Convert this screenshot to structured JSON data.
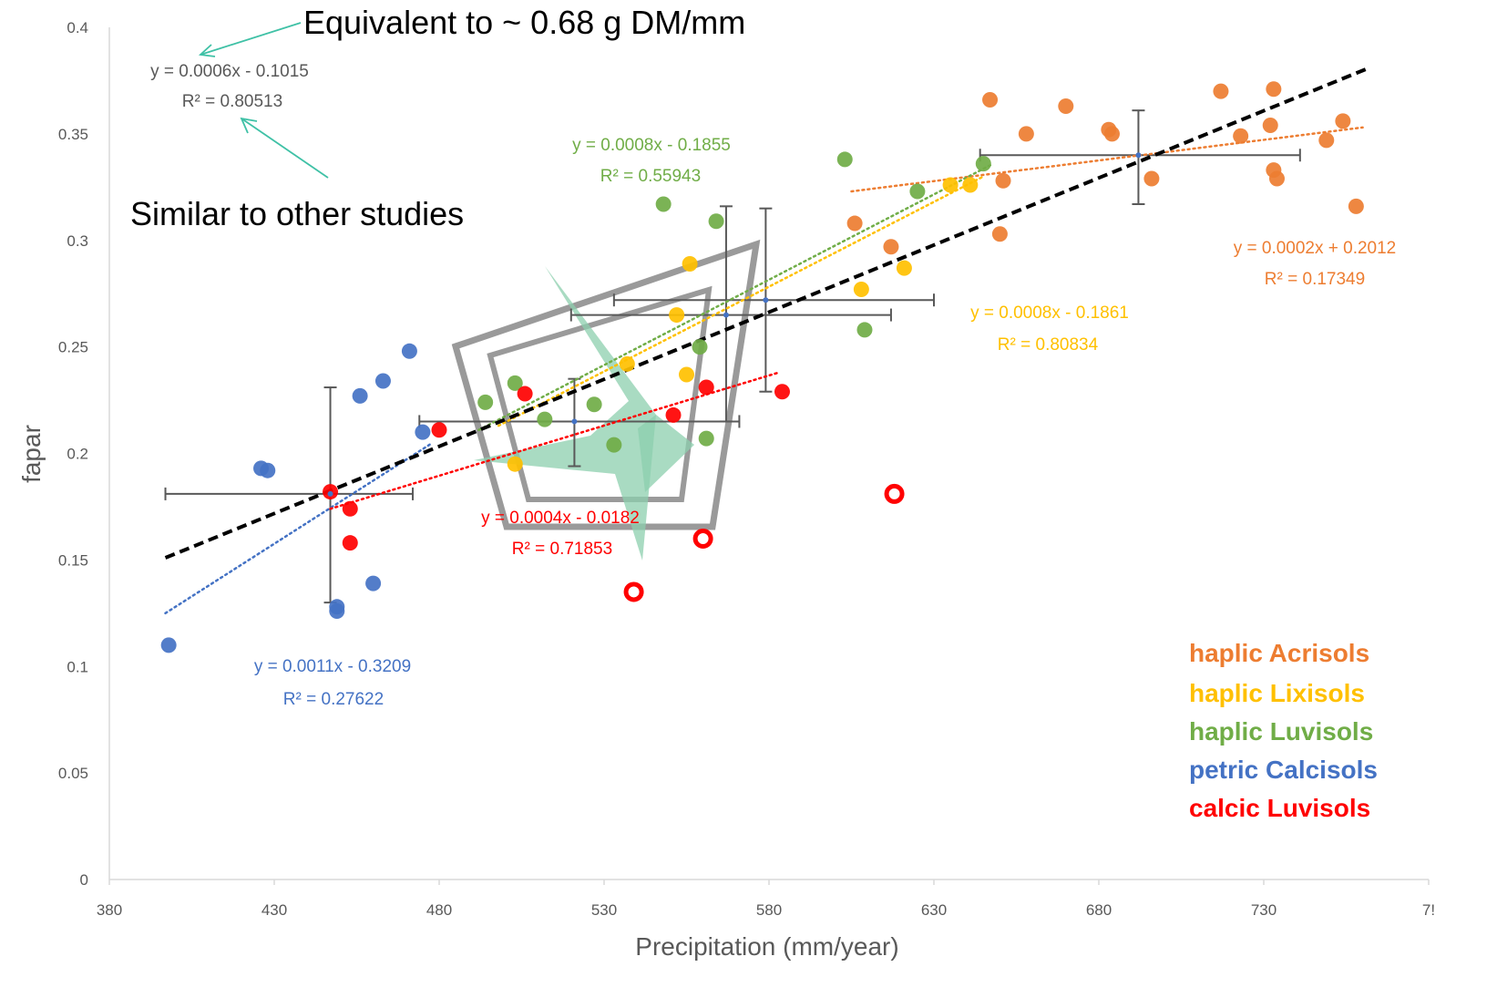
{
  "chart_data": {
    "type": "scatter",
    "xlabel": "Precipitation (mm/year)",
    "ylabel": "fapar",
    "xlim": [
      380,
      780
    ],
    "ylim": [
      0,
      0.4
    ],
    "x_ticks": [
      "380",
      "430",
      "480",
      "530",
      "580",
      "630",
      "680",
      "730",
      "7!"
    ],
    "y_ticks": [
      "0",
      "0.05",
      "0.1",
      "0.15",
      "0.2",
      "0.25",
      "0.3",
      "0.35",
      "0.4"
    ],
    "grid": false,
    "legend_position": "bottom-right",
    "series": [
      {
        "name": "haplic Acrisols",
        "color": "#ED7D31",
        "points": [
          [
            647,
            0.366
          ],
          [
            651,
            0.328
          ],
          [
            650,
            0.303
          ],
          [
            658,
            0.35
          ],
          [
            670,
            0.363
          ],
          [
            683,
            0.352
          ],
          [
            684,
            0.35
          ],
          [
            696,
            0.329
          ],
          [
            717,
            0.37
          ],
          [
            723,
            0.349
          ],
          [
            733,
            0.371
          ],
          [
            732,
            0.354
          ],
          [
            733,
            0.333
          ],
          [
            734,
            0.329
          ],
          [
            749,
            0.347
          ],
          [
            754,
            0.356
          ],
          [
            758,
            0.316
          ],
          [
            606,
            0.308
          ],
          [
            617,
            0.297
          ]
        ],
        "trend": {
          "x": [
            605,
            760
          ],
          "y": [
            0.323,
            0.353
          ],
          "equation": "y = 0.0002x + 0.2012",
          "r2": "R² = 0.17349"
        }
      },
      {
        "name": "haplic Lixisols",
        "color": "#FFC000",
        "points": [
          [
            503,
            0.195
          ],
          [
            537,
            0.242
          ],
          [
            552,
            0.265
          ],
          [
            555,
            0.237
          ],
          [
            556,
            0.289
          ],
          [
            608,
            0.277
          ],
          [
            621,
            0.287
          ],
          [
            635,
            0.326
          ],
          [
            641,
            0.326
          ]
        ],
        "trend": {
          "x": [
            498,
            645
          ],
          "y": [
            0.213,
            0.33
          ],
          "equation": "y = 0.0008x - 0.1861",
          "r2": "R² = 0.80834"
        }
      },
      {
        "name": "haplic Luvisols",
        "color": "#70AD47",
        "points": [
          [
            494,
            0.224
          ],
          [
            503,
            0.233
          ],
          [
            512,
            0.216
          ],
          [
            527,
            0.223
          ],
          [
            533,
            0.204
          ],
          [
            548,
            0.317
          ],
          [
            559,
            0.25
          ],
          [
            561,
            0.207
          ],
          [
            564,
            0.309
          ],
          [
            603,
            0.338
          ],
          [
            609,
            0.258
          ],
          [
            625,
            0.323
          ],
          [
            645,
            0.336
          ]
        ],
        "trend": {
          "x": [
            492,
            648
          ],
          "y": [
            0.211,
            0.336
          ],
          "equation": "y = 0.0008x - 0.1855",
          "r2": "R² = 0.55943"
        }
      },
      {
        "name": "petric Calcisols",
        "color": "#4472C4",
        "points": [
          [
            398,
            0.11
          ],
          [
            426,
            0.193
          ],
          [
            428,
            0.192
          ],
          [
            449,
            0.128
          ],
          [
            449,
            0.126
          ],
          [
            456,
            0.227
          ],
          [
            460,
            0.139
          ],
          [
            463,
            0.234
          ],
          [
            471,
            0.248
          ],
          [
            475,
            0.21
          ]
        ],
        "trend": {
          "x": [
            397,
            478
          ],
          "y": [
            0.125,
            0.205
          ],
          "equation": "y = 0.0011x - 0.3209",
          "r2": "R² = 0.27622"
        }
      },
      {
        "name": "calcic Luvisols",
        "color": "#FF0000",
        "points": [
          [
            447,
            0.182
          ],
          [
            453,
            0.174
          ],
          [
            453,
            0.158
          ],
          [
            480,
            0.211
          ],
          [
            506,
            0.228
          ],
          [
            551,
            0.218
          ],
          [
            561,
            0.231
          ],
          [
            584,
            0.229
          ]
        ],
        "open_points": [
          [
            539,
            0.135
          ],
          [
            560,
            0.16
          ],
          [
            618,
            0.181
          ]
        ],
        "trend": {
          "x": [
            447,
            583
          ],
          "y": [
            0.174,
            0.238
          ],
          "equation": "y = 0.0004x - 0.0182",
          "r2": "R² = 0.71853"
        }
      }
    ],
    "overall_trend": {
      "x": [
        397,
        762
      ],
      "y": [
        0.151,
        0.381
      ],
      "equation": "y = 0.0006x - 0.1015",
      "r2": "R² = 0.80513",
      "color": "#000000"
    },
    "error_bars": [
      {
        "x": 447,
        "y": 0.181,
        "xerr": [
          397,
          472
        ],
        "yerr": [
          0.13,
          0.231
        ]
      },
      {
        "x": 521,
        "y": 0.215,
        "xerr": [
          474,
          571
        ],
        "yerr": [
          0.194,
          0.235
        ]
      },
      {
        "x": 567,
        "y": 0.265,
        "xerr": [
          520,
          617
        ],
        "yerr": [
          0.215,
          0.316
        ]
      },
      {
        "x": 579,
        "y": 0.272,
        "xerr": [
          533,
          630
        ],
        "yerr": [
          0.229,
          0.315
        ]
      },
      {
        "x": 692,
        "y": 0.34,
        "xerr": [
          644,
          741
        ],
        "yerr": [
          0.317,
          0.361
        ]
      }
    ],
    "annotations": [
      {
        "text": "Equivalent to ~ 0.68 g DM/mm"
      },
      {
        "text": "Similar to other studies"
      }
    ]
  }
}
